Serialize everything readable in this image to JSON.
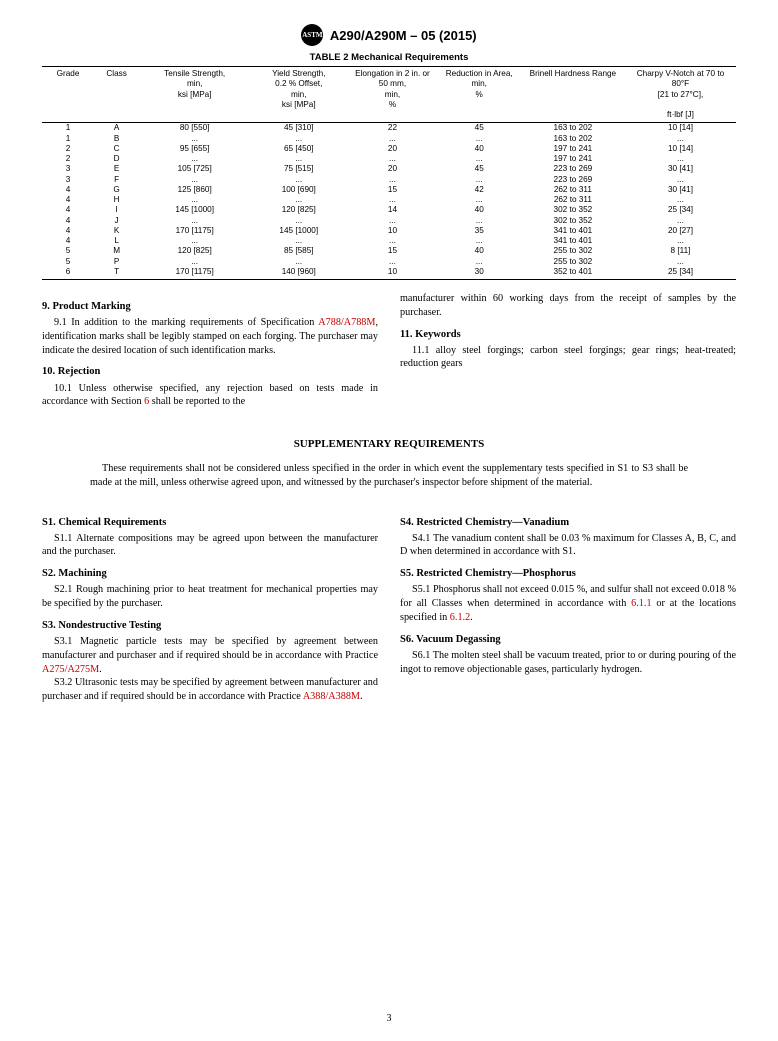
{
  "header": {
    "logo_text": "ASTM",
    "doc_id": "A290/A290M – 05 (2015)"
  },
  "table": {
    "caption": "TABLE 2 Mechanical Requirements",
    "columns": [
      "Grade",
      "Class",
      "Tensile Strength, min, ksi [MPa]",
      "Yield Strength, 0.2 % Offset, min, ksi [MPa]",
      "Elongation in 2 in. or 50 mm, min, %",
      "Reduction in Area, min, %",
      "Brinell Hardness Range",
      "Charpy V-Notch at 70 to 80°F [21 to 27°C], ft·lbf [J]"
    ],
    "widths": [
      7.5,
      6.5,
      16,
      14,
      13,
      12,
      15,
      16
    ],
    "rows": [
      [
        "1",
        "A",
        "80 [550]",
        "45 [310]",
        "22",
        "45",
        "163 to 202",
        "10 [14]"
      ],
      [
        "1",
        "B",
        "...",
        "...",
        "...",
        "...",
        "163 to 202",
        "..."
      ],
      [
        "2",
        "C",
        "95 [655]",
        "65 [450]",
        "20",
        "40",
        "197 to 241",
        "10 [14]"
      ],
      [
        "2",
        "D",
        "...",
        "...",
        "...",
        "...",
        "197 to 241",
        "..."
      ],
      [
        "3",
        "E",
        "105 [725]",
        "75 [515]",
        "20",
        "45",
        "223 to 269",
        "30 [41]"
      ],
      [
        "3",
        "F",
        "...",
        "...",
        "...",
        "...",
        "223 to 269",
        "..."
      ],
      [
        "4",
        "G",
        "125 [860]",
        "100 [690]",
        "15",
        "42",
        "262 to 311",
        "30 [41]"
      ],
      [
        "4",
        "H",
        "...",
        "...",
        "...",
        "...",
        "262 to 311",
        "..."
      ],
      [
        "4",
        "I",
        "145 [1000]",
        "120 [825]",
        "14",
        "40",
        "302 to 352",
        "25 [34]"
      ],
      [
        "4",
        "J",
        "...",
        "...",
        "...",
        "...",
        "302 to 352",
        "..."
      ],
      [
        "4",
        "K",
        "170 [1175]",
        "145 [1000]",
        "10",
        "35",
        "341 to 401",
        "20 [27]"
      ],
      [
        "4",
        "L",
        "...",
        "...",
        "...",
        "...",
        "341 to 401",
        "..."
      ],
      [
        "5",
        "M",
        "120 [825]",
        "85 [585]",
        "15",
        "40",
        "255 to 302",
        "8 [11]"
      ],
      [
        "5",
        "P",
        "...",
        "...",
        "...",
        "...",
        "255 to 302",
        "..."
      ],
      [
        "6",
        "T",
        "170 [1175]",
        "140 [960]",
        "10",
        "30",
        "352 to 401",
        "25 [34]"
      ]
    ]
  },
  "sections": {
    "s9": {
      "head": "9. Product Marking",
      "p1a": "9.1  In addition to the marking requirements of Specification ",
      "p1ref": "A788/A788M",
      "p1b": ", identification marks shall be legibly stamped on each forging. The purchaser may indicate the desired location of such identification marks."
    },
    "s10": {
      "head": "10. Rejection",
      "p1a": "10.1  Unless otherwise specified, any rejection based on tests made in accordance with Section ",
      "p1ref": "6",
      "p1b": " shall be reported to the ",
      "p1c": "manufacturer within 60 working days from the receipt of samples by the purchaser."
    },
    "s11": {
      "head": "11. Keywords",
      "p1": "11.1  alloy steel forgings; carbon steel forgings; gear rings; heat-treated; reduction gears"
    },
    "supp": {
      "title": "SUPPLEMENTARY REQUIREMENTS",
      "intro": "These requirements shall not be considered unless specified in the order in which event the supplementary tests specified in S1 to S3 shall be made at the mill, unless otherwise agreed upon, and witnessed by the purchaser's inspector before shipment of the material."
    },
    "S1": {
      "head": "S1. Chemical Requirements",
      "p1": "S1.1  Alternate compositions may be agreed upon between the manufacturer and the purchaser."
    },
    "S2": {
      "head": "S2. Machining",
      "p1": "S2.1  Rough machining prior to heat treatment for mechanical properties may be specified by the purchaser."
    },
    "S3": {
      "head": "S3. Nondestructive Testing",
      "p1a": "S3.1  Magnetic particle tests may be specified by agreement between manufacturer and purchaser and if required should be in accordance with Practice ",
      "p1ref": "A275/A275M",
      "p1b": ".",
      "p2a": "S3.2  Ultrasonic tests may be specified by agreement between manufacturer and purchaser and if required should be in accordance with Practice ",
      "p2ref": "A388/A388M",
      "p2b": "."
    },
    "S4": {
      "head": "S4. Restricted Chemistry—Vanadium",
      "p1": "S4.1  The vanadium content shall be 0.03 % maximum for Classes A, B, C, and D when determined in accordance with S1."
    },
    "S5": {
      "head": "S5. Restricted Chemistry—Phosphorus",
      "p1a": "S5.1  Phosphorus shall not exceed 0.015 %, and sulfur shall not exceed 0.018 % for all Classes when determined in accordance with ",
      "p1ref1": "6.1.1",
      "p1b": " or at the locations specified in ",
      "p1ref2": "6.1.2",
      "p1c": "."
    },
    "S6": {
      "head": "S6. Vacuum Degassing",
      "p1": "S6.1  The molten steel shall be vacuum treated, prior to or during pouring of the ingot to remove objectionable gases, particularly hydrogen."
    }
  },
  "page_number": "3"
}
